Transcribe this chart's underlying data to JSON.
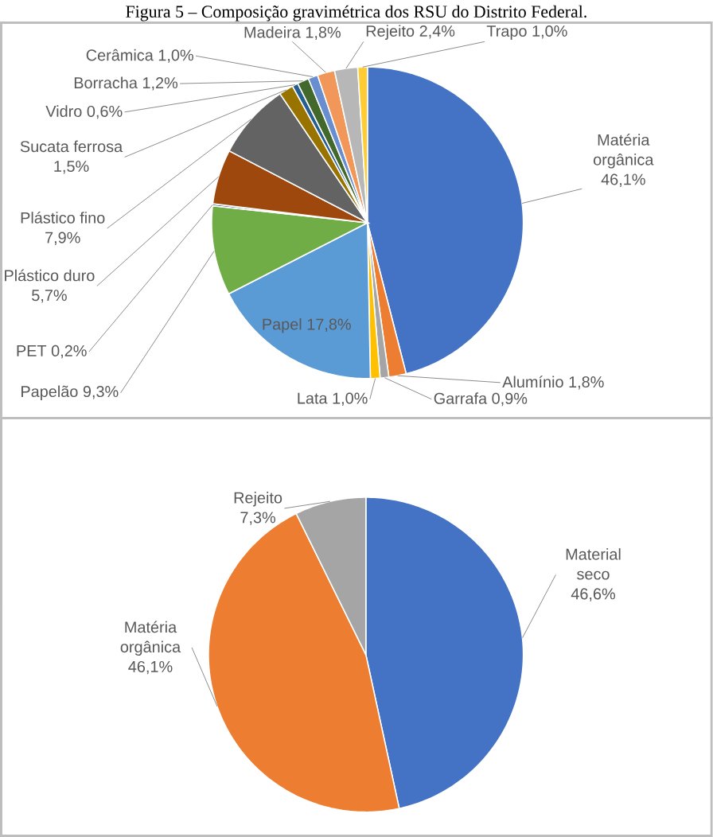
{
  "chart_data": [
    {
      "type": "pie",
      "title": "Figura 5 – Composição gravimétrica dos RSU do Distrito Federal.",
      "categories": [
        "Matéria orgânica",
        "Alumínio",
        "Garrafa",
        "Lata",
        "Papel",
        "Papelão",
        "PET",
        "Plástico duro",
        "Plástico fino",
        "Sucata ferrosa",
        "Vidro",
        "Borracha",
        "Cerâmica",
        "Madeira",
        "Rejeito",
        "Trapo"
      ],
      "values": [
        46.1,
        1.8,
        0.9,
        1.0,
        17.8,
        9.3,
        0.2,
        5.7,
        7.9,
        1.5,
        0.6,
        1.2,
        1.0,
        1.8,
        2.4,
        1.0
      ],
      "value_labels": [
        "46,1%",
        "1,8%",
        "0,9%",
        "1,0%",
        "17,8%",
        "9,3%",
        "0,2%",
        "5,7%",
        "7,9%",
        "1,5%",
        "0,6%",
        "1,2%",
        "1,0%",
        "1,8%",
        "2,4%",
        "1,0%"
      ],
      "colors": [
        "#4472c4",
        "#ed7d31",
        "#a5a5a5",
        "#ffc000",
        "#5b9bd5",
        "#70ad47",
        "#264478",
        "#9e480e",
        "#636363",
        "#997300",
        "#255e91",
        "#43682b",
        "#698ed0",
        "#f1975a",
        "#b7b7b7",
        "#ffcd33"
      ]
    },
    {
      "type": "pie",
      "categories": [
        "Material seco",
        "Matéria orgânica",
        "Rejeito"
      ],
      "values": [
        46.6,
        46.1,
        7.3
      ],
      "value_labels": [
        "46,6%",
        "46,1%",
        "7,3%"
      ],
      "colors": [
        "#4472c4",
        "#ed7d31",
        "#a5a5a5"
      ]
    }
  ]
}
